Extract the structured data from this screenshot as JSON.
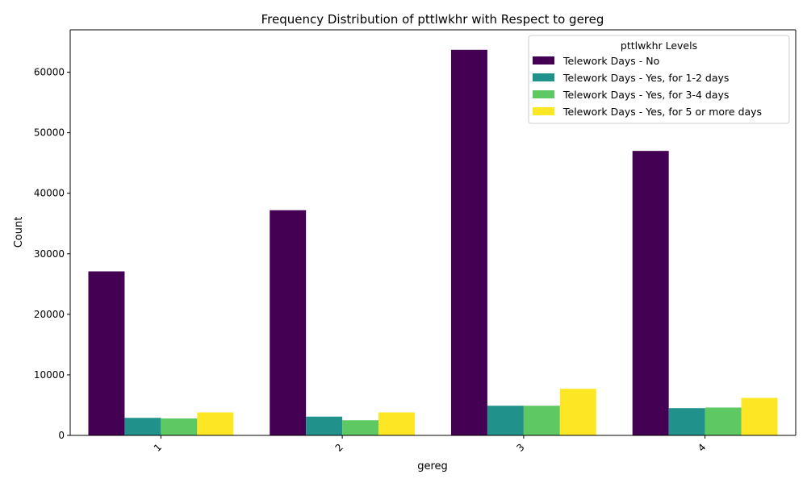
{
  "chart_data": {
    "type": "bar",
    "title": "Frequency Distribution of pttlwkhr with Respect to gereg",
    "xlabel": "gereg",
    "ylabel": "Count",
    "categories": [
      "1",
      "2",
      "3",
      "4"
    ],
    "ylim": [
      0,
      67000
    ],
    "yticks": [
      0,
      10000,
      20000,
      30000,
      40000,
      50000,
      60000
    ],
    "grid": false,
    "legend": {
      "title": "pttlwkhr Levels",
      "placement": "top-right"
    },
    "series": [
      {
        "name": "Telework Days - No",
        "color": "#440154",
        "values": [
          27100,
          37200,
          63700,
          47000
        ]
      },
      {
        "name": "Telework Days - Yes, for 1-2 days",
        "color": "#21918c",
        "values": [
          2900,
          3100,
          4900,
          4500
        ]
      },
      {
        "name": "Telework Days - Yes, for 3-4 days",
        "color": "#5ec962",
        "values": [
          2800,
          2500,
          4900,
          4600
        ]
      },
      {
        "name": "Telework Days - Yes, for 5 or more days",
        "color": "#fde725",
        "values": [
          3800,
          3800,
          7700,
          6200
        ]
      }
    ]
  }
}
